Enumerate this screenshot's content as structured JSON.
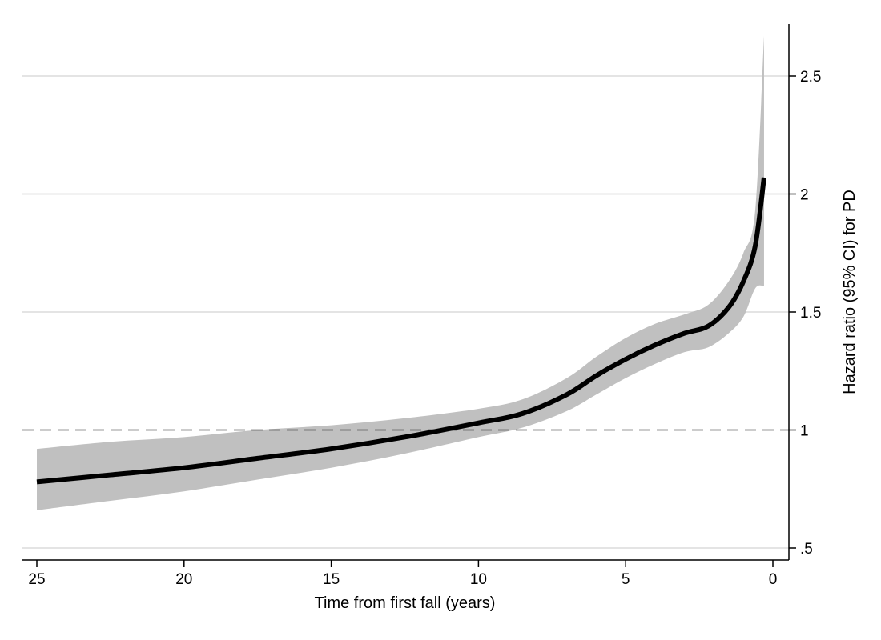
{
  "chart_data": {
    "type": "line",
    "title": "",
    "xlabel": "Time from first fall (years)",
    "ylabel": "Hazard ratio (95% CI) for PD",
    "x_axis_reversed": true,
    "y_axis_position": "right",
    "xlim": [
      25.5,
      -0.5
    ],
    "ylim": [
      0.45,
      2.75
    ],
    "x_ticks": [
      {
        "value": 25,
        "label": "25"
      },
      {
        "value": 20,
        "label": "20"
      },
      {
        "value": 15,
        "label": "15"
      },
      {
        "value": 10,
        "label": "10"
      },
      {
        "value": 5,
        "label": "5"
      },
      {
        "value": 0,
        "label": "0"
      }
    ],
    "y_ticks": [
      {
        "value": 0.5,
        "label": ".5"
      },
      {
        "value": 1,
        "label": "1"
      },
      {
        "value": 1.5,
        "label": "1.5"
      },
      {
        "value": 2,
        "label": "2"
      },
      {
        "value": 2.5,
        "label": "2.5"
      }
    ],
    "grid": "horizontal",
    "reference_line": {
      "y": 1,
      "style": "dashed"
    },
    "series": [
      {
        "kind": "estimate_with_ci",
        "color": "#000000",
        "band_color": "#c0c0c0",
        "points": [
          {
            "x": 25,
            "y": 0.78,
            "lower": 0.66,
            "upper": 0.92
          },
          {
            "x": 22.5,
            "y": 0.81,
            "lower": 0.7,
            "upper": 0.95
          },
          {
            "x": 20,
            "y": 0.84,
            "lower": 0.74,
            "upper": 0.97
          },
          {
            "x": 17.5,
            "y": 0.88,
            "lower": 0.79,
            "upper": 1.0
          },
          {
            "x": 15,
            "y": 0.92,
            "lower": 0.84,
            "upper": 1.02
          },
          {
            "x": 12.5,
            "y": 0.97,
            "lower": 0.9,
            "upper": 1.05
          },
          {
            "x": 10,
            "y": 1.03,
            "lower": 0.97,
            "upper": 1.09
          },
          {
            "x": 8.5,
            "y": 1.07,
            "lower": 1.01,
            "upper": 1.13
          },
          {
            "x": 7,
            "y": 1.15,
            "lower": 1.08,
            "upper": 1.22
          },
          {
            "x": 6,
            "y": 1.23,
            "lower": 1.15,
            "upper": 1.31
          },
          {
            "x": 5,
            "y": 1.3,
            "lower": 1.22,
            "upper": 1.39
          },
          {
            "x": 4,
            "y": 1.36,
            "lower": 1.28,
            "upper": 1.45
          },
          {
            "x": 3,
            "y": 1.41,
            "lower": 1.33,
            "upper": 1.49
          },
          {
            "x": 2.2,
            "y": 1.44,
            "lower": 1.35,
            "upper": 1.53
          },
          {
            "x": 1.5,
            "y": 1.52,
            "lower": 1.41,
            "upper": 1.63
          },
          {
            "x": 1,
            "y": 1.63,
            "lower": 1.48,
            "upper": 1.75
          },
          {
            "x": 0.6,
            "y": 1.78,
            "lower": 1.6,
            "upper": 1.93
          },
          {
            "x": 0.3,
            "y": 2.07,
            "lower": 1.61,
            "upper": 2.67
          }
        ]
      }
    ]
  }
}
